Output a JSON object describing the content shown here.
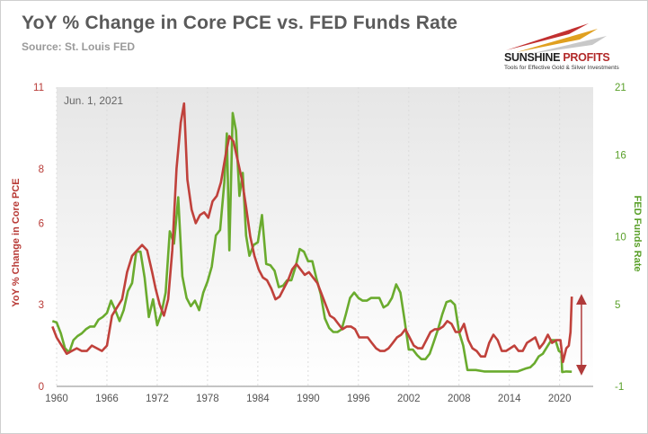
{
  "header": {
    "title": "YoY % Change in Core PCE vs. FED Funds Rate",
    "source": "Source: St. Louis FED"
  },
  "logo": {
    "name_part1": "SUNSHINE",
    "name_part2": " PROFITS",
    "tagline": "Tools for Effective Gold & Silver Investments"
  },
  "colors": {
    "pce": "#c0413b",
    "fed": "#6aab2e",
    "arrow": "#b03a3a",
    "grid": "#dcdcdc"
  },
  "chart_data": {
    "type": "line",
    "annotation": "Jun. 1, 2021",
    "ylabel": "YoY % Change in Core PCE",
    "y2label": "FED Funds Rate",
    "ylim": [
      0,
      11
    ],
    "y2lim": [
      -1,
      21
    ],
    "xlim": [
      1960,
      2024
    ],
    "x_ticks": [
      1960,
      1966,
      1972,
      1978,
      1984,
      1990,
      1996,
      2002,
      2008,
      2014,
      2020
    ],
    "y_ticks": [
      0,
      3,
      6,
      8,
      11
    ],
    "y2_ticks": [
      -1,
      5,
      10,
      16,
      21
    ],
    "grid": "vertical",
    "series": [
      {
        "name": "YoY % Change in Core PCE",
        "axis": "left",
        "points": [
          [
            1959.5,
            2.2
          ],
          [
            1960.0,
            1.8
          ],
          [
            1960.6,
            1.5
          ],
          [
            1961.2,
            1.2
          ],
          [
            1961.8,
            1.3
          ],
          [
            1962.4,
            1.4
          ],
          [
            1963.0,
            1.3
          ],
          [
            1963.6,
            1.3
          ],
          [
            1964.2,
            1.5
          ],
          [
            1964.8,
            1.4
          ],
          [
            1965.4,
            1.3
          ],
          [
            1966.0,
            1.5
          ],
          [
            1966.6,
            2.6
          ],
          [
            1967.2,
            2.9
          ],
          [
            1967.8,
            3.2
          ],
          [
            1968.4,
            4.2
          ],
          [
            1969.0,
            4.8
          ],
          [
            1969.6,
            5.0
          ],
          [
            1970.2,
            5.2
          ],
          [
            1970.8,
            5.0
          ],
          [
            1971.4,
            4.2
          ],
          [
            1971.8,
            3.6
          ],
          [
            1972.3,
            3.0
          ],
          [
            1972.8,
            2.6
          ],
          [
            1973.3,
            3.2
          ],
          [
            1973.8,
            5.0
          ],
          [
            1974.3,
            8.0
          ],
          [
            1974.8,
            9.7
          ],
          [
            1975.2,
            10.4
          ],
          [
            1975.6,
            7.6
          ],
          [
            1976.1,
            6.5
          ],
          [
            1976.6,
            6.0
          ],
          [
            1977.1,
            6.3
          ],
          [
            1977.6,
            6.4
          ],
          [
            1978.1,
            6.2
          ],
          [
            1978.6,
            6.8
          ],
          [
            1979.1,
            7.0
          ],
          [
            1979.6,
            7.5
          ],
          [
            1980.1,
            8.4
          ],
          [
            1980.6,
            9.2
          ],
          [
            1981.1,
            9.0
          ],
          [
            1981.6,
            8.3
          ],
          [
            1982.1,
            7.6
          ],
          [
            1982.6,
            6.6
          ],
          [
            1983.1,
            5.5
          ],
          [
            1983.6,
            4.8
          ],
          [
            1984.1,
            4.3
          ],
          [
            1984.6,
            4.0
          ],
          [
            1985.1,
            3.9
          ],
          [
            1985.6,
            3.6
          ],
          [
            1986.1,
            3.2
          ],
          [
            1986.6,
            3.3
          ],
          [
            1987.1,
            3.6
          ],
          [
            1987.6,
            3.9
          ],
          [
            1988.1,
            4.3
          ],
          [
            1988.6,
            4.5
          ],
          [
            1989.1,
            4.3
          ],
          [
            1989.6,
            4.1
          ],
          [
            1990.1,
            4.2
          ],
          [
            1990.6,
            4.0
          ],
          [
            1991.1,
            3.8
          ],
          [
            1991.6,
            3.4
          ],
          [
            1992.1,
            3.0
          ],
          [
            1992.6,
            2.6
          ],
          [
            1993.1,
            2.5
          ],
          [
            1993.6,
            2.3
          ],
          [
            1994.1,
            2.1
          ],
          [
            1994.6,
            2.2
          ],
          [
            1995.1,
            2.2
          ],
          [
            1995.6,
            2.1
          ],
          [
            1996.1,
            1.8
          ],
          [
            1996.6,
            1.8
          ],
          [
            1997.1,
            1.8
          ],
          [
            1997.6,
            1.6
          ],
          [
            1998.1,
            1.4
          ],
          [
            1998.6,
            1.3
          ],
          [
            1999.1,
            1.3
          ],
          [
            1999.6,
            1.4
          ],
          [
            2000.1,
            1.6
          ],
          [
            2000.6,
            1.8
          ],
          [
            2001.1,
            1.9
          ],
          [
            2001.6,
            2.1
          ],
          [
            2002.1,
            1.8
          ],
          [
            2002.6,
            1.5
          ],
          [
            2003.1,
            1.4
          ],
          [
            2003.6,
            1.4
          ],
          [
            2004.1,
            1.7
          ],
          [
            2004.6,
            2.0
          ],
          [
            2005.1,
            2.1
          ],
          [
            2005.6,
            2.1
          ],
          [
            2006.1,
            2.2
          ],
          [
            2006.6,
            2.4
          ],
          [
            2007.1,
            2.3
          ],
          [
            2007.6,
            2.0
          ],
          [
            2008.1,
            2.0
          ],
          [
            2008.6,
            2.3
          ],
          [
            2009.1,
            1.7
          ],
          [
            2009.6,
            1.4
          ],
          [
            2010.1,
            1.3
          ],
          [
            2010.6,
            1.1
          ],
          [
            2011.1,
            1.1
          ],
          [
            2011.6,
            1.6
          ],
          [
            2012.1,
            1.9
          ],
          [
            2012.6,
            1.7
          ],
          [
            2013.1,
            1.3
          ],
          [
            2013.6,
            1.3
          ],
          [
            2014.1,
            1.4
          ],
          [
            2014.6,
            1.5
          ],
          [
            2015.1,
            1.3
          ],
          [
            2015.6,
            1.3
          ],
          [
            2016.1,
            1.6
          ],
          [
            2016.6,
            1.7
          ],
          [
            2017.1,
            1.8
          ],
          [
            2017.6,
            1.4
          ],
          [
            2018.1,
            1.6
          ],
          [
            2018.6,
            1.9
          ],
          [
            2019.1,
            1.6
          ],
          [
            2019.6,
            1.7
          ],
          [
            2020.1,
            1.7
          ],
          [
            2020.4,
            0.9
          ],
          [
            2020.8,
            1.4
          ],
          [
            2021.1,
            1.5
          ],
          [
            2021.3,
            2.0
          ],
          [
            2021.45,
            3.3
          ]
        ]
      },
      {
        "name": "FED Funds Rate",
        "axis": "right",
        "points": [
          [
            1959.5,
            3.8
          ],
          [
            1960.0,
            3.7
          ],
          [
            1960.5,
            2.9
          ],
          [
            1961.0,
            1.8
          ],
          [
            1961.5,
            1.5
          ],
          [
            1962.0,
            2.4
          ],
          [
            1962.5,
            2.7
          ],
          [
            1963.0,
            2.9
          ],
          [
            1963.5,
            3.2
          ],
          [
            1964.0,
            3.4
          ],
          [
            1964.5,
            3.4
          ],
          [
            1965.0,
            3.9
          ],
          [
            1965.5,
            4.1
          ],
          [
            1966.0,
            4.4
          ],
          [
            1966.5,
            5.3
          ],
          [
            1967.0,
            4.6
          ],
          [
            1967.5,
            3.8
          ],
          [
            1968.0,
            4.6
          ],
          [
            1968.5,
            6.0
          ],
          [
            1969.0,
            6.6
          ],
          [
            1969.5,
            8.9
          ],
          [
            1970.0,
            8.9
          ],
          [
            1970.5,
            7.0
          ],
          [
            1971.0,
            4.1
          ],
          [
            1971.5,
            5.4
          ],
          [
            1972.0,
            3.5
          ],
          [
            1972.5,
            4.4
          ],
          [
            1973.0,
            5.9
          ],
          [
            1973.5,
            10.4
          ],
          [
            1974.0,
            9.5
          ],
          [
            1974.5,
            12.9
          ],
          [
            1975.0,
            7.1
          ],
          [
            1975.5,
            5.5
          ],
          [
            1976.0,
            4.9
          ],
          [
            1976.5,
            5.3
          ],
          [
            1977.0,
            4.6
          ],
          [
            1977.5,
            5.9
          ],
          [
            1978.0,
            6.7
          ],
          [
            1978.5,
            7.8
          ],
          [
            1979.0,
            10.1
          ],
          [
            1979.5,
            10.5
          ],
          [
            1980.0,
            14.0
          ],
          [
            1980.3,
            17.6
          ],
          [
            1980.6,
            9.0
          ],
          [
            1981.0,
            19.1
          ],
          [
            1981.4,
            17.8
          ],
          [
            1981.8,
            13.0
          ],
          [
            1982.2,
            14.7
          ],
          [
            1982.6,
            10.1
          ],
          [
            1983.0,
            8.6
          ],
          [
            1983.5,
            9.4
          ],
          [
            1984.0,
            9.6
          ],
          [
            1984.5,
            11.6
          ],
          [
            1985.0,
            8.0
          ],
          [
            1985.5,
            7.9
          ],
          [
            1986.0,
            7.5
          ],
          [
            1986.5,
            6.3
          ],
          [
            1987.0,
            6.4
          ],
          [
            1987.5,
            6.8
          ],
          [
            1988.0,
            6.8
          ],
          [
            1988.5,
            7.8
          ],
          [
            1989.0,
            9.1
          ],
          [
            1989.5,
            8.9
          ],
          [
            1990.0,
            8.2
          ],
          [
            1990.5,
            8.2
          ],
          [
            1991.0,
            6.9
          ],
          [
            1991.5,
            5.8
          ],
          [
            1992.0,
            4.0
          ],
          [
            1992.5,
            3.3
          ],
          [
            1993.0,
            3.0
          ],
          [
            1993.5,
            3.0
          ],
          [
            1994.0,
            3.2
          ],
          [
            1994.5,
            4.3
          ],
          [
            1995.0,
            5.5
          ],
          [
            1995.5,
            5.9
          ],
          [
            1996.0,
            5.5
          ],
          [
            1996.5,
            5.3
          ],
          [
            1997.0,
            5.3
          ],
          [
            1997.5,
            5.5
          ],
          [
            1998.0,
            5.5
          ],
          [
            1998.5,
            5.5
          ],
          [
            1999.0,
            4.8
          ],
          [
            1999.5,
            5.0
          ],
          [
            2000.0,
            5.5
          ],
          [
            2000.5,
            6.5
          ],
          [
            2001.0,
            5.9
          ],
          [
            2001.5,
            3.9
          ],
          [
            2002.0,
            1.7
          ],
          [
            2002.5,
            1.7
          ],
          [
            2003.0,
            1.3
          ],
          [
            2003.5,
            1.0
          ],
          [
            2004.0,
            1.0
          ],
          [
            2004.5,
            1.4
          ],
          [
            2005.0,
            2.3
          ],
          [
            2005.5,
            3.2
          ],
          [
            2006.0,
            4.3
          ],
          [
            2006.5,
            5.2
          ],
          [
            2007.0,
            5.3
          ],
          [
            2007.5,
            5.0
          ],
          [
            2008.0,
            3.0
          ],
          [
            2008.5,
            2.0
          ],
          [
            2009.0,
            0.2
          ],
          [
            2010.0,
            0.2
          ],
          [
            2011.0,
            0.1
          ],
          [
            2012.0,
            0.1
          ],
          [
            2013.0,
            0.1
          ],
          [
            2014.0,
            0.1
          ],
          [
            2015.0,
            0.1
          ],
          [
            2015.9,
            0.3
          ],
          [
            2016.5,
            0.4
          ],
          [
            2017.0,
            0.7
          ],
          [
            2017.5,
            1.2
          ],
          [
            2018.0,
            1.4
          ],
          [
            2018.5,
            1.9
          ],
          [
            2019.0,
            2.4
          ],
          [
            2019.5,
            2.4
          ],
          [
            2019.9,
            1.6
          ],
          [
            2020.2,
            1.5
          ],
          [
            2020.3,
            0.05
          ],
          [
            2020.8,
            0.1
          ],
          [
            2021.45,
            0.08
          ]
        ]
      }
    ],
    "arrow": {
      "x": 2022.6,
      "y_from": 0.6,
      "y_to": 3.2
    }
  }
}
